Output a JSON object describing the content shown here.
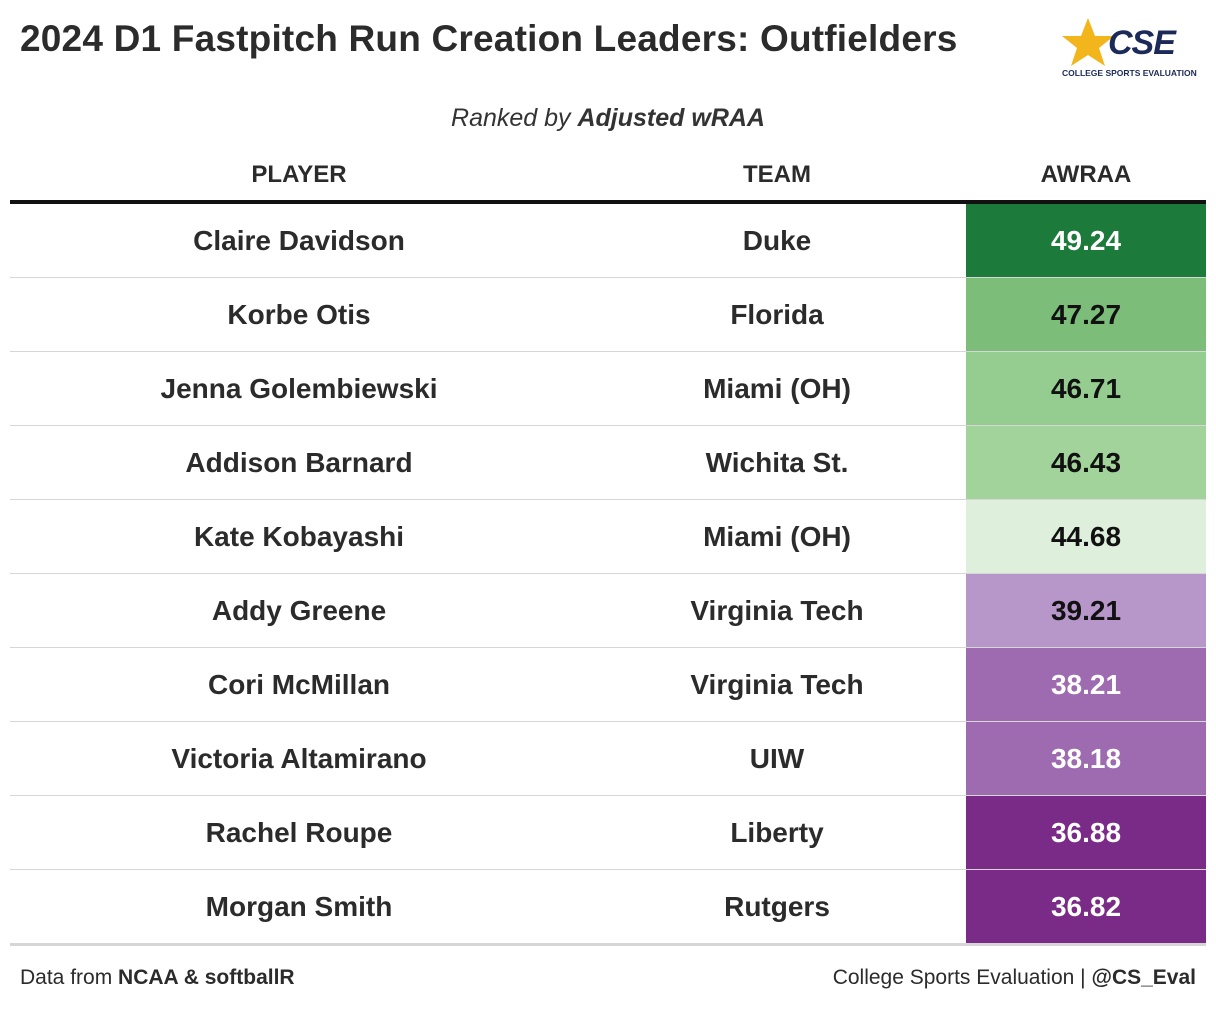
{
  "header": {
    "title": "2024 D1 Fastpitch Run Creation Leaders: Outfielders",
    "subtitle_prefix": "Ranked by ",
    "subtitle_bold": "Adjusted wRAA"
  },
  "logo": {
    "mark": "CSE",
    "sub": "COLLEGE SPORTS EVALUATION",
    "star_color": "#f2b51c",
    "text_color": "#1c2a5a"
  },
  "columns": {
    "player": "PLAYER",
    "team": "TEAM",
    "value": "AWRAA"
  },
  "rows": [
    {
      "player": "Claire Davidson",
      "team": "Duke",
      "value": "49.24",
      "bg": "#1c7a3a",
      "fg": "#ffffff"
    },
    {
      "player": "Korbe Otis",
      "team": "Florida",
      "value": "47.27",
      "bg": "#7bbd79",
      "fg": "#111111"
    },
    {
      "player": "Jenna Golembiewski",
      "team": "Miami (OH)",
      "value": "46.71",
      "bg": "#95cc90",
      "fg": "#111111"
    },
    {
      "player": "Addison Barnard",
      "team": "Wichita St.",
      "value": "46.43",
      "bg": "#a1d39b",
      "fg": "#111111"
    },
    {
      "player": "Kate Kobayashi",
      "team": "Miami (OH)",
      "value": "44.68",
      "bg": "#def0db",
      "fg": "#111111"
    },
    {
      "player": "Addy Greene",
      "team": "Virginia Tech",
      "value": "39.21",
      "bg": "#b797c9",
      "fg": "#111111"
    },
    {
      "player": "Cori McMillan",
      "team": "Virginia Tech",
      "value": "38.21",
      "bg": "#9e6bb0",
      "fg": "#ffffff"
    },
    {
      "player": "Victoria Altamirano",
      "team": "UIW",
      "value": "38.18",
      "bg": "#9e6bb0",
      "fg": "#ffffff"
    },
    {
      "player": "Rachel Roupe",
      "team": "Liberty",
      "value": "36.88",
      "bg": "#7a2a87",
      "fg": "#ffffff"
    },
    {
      "player": "Morgan Smith",
      "team": "Rutgers",
      "value": "36.82",
      "bg": "#7a2a87",
      "fg": "#ffffff"
    }
  ],
  "footer": {
    "left_prefix": "Data from ",
    "left_bold": "NCAA & softballR",
    "right_prefix": "College Sports Evaluation | ",
    "right_bold": "@CS_Eval"
  }
}
